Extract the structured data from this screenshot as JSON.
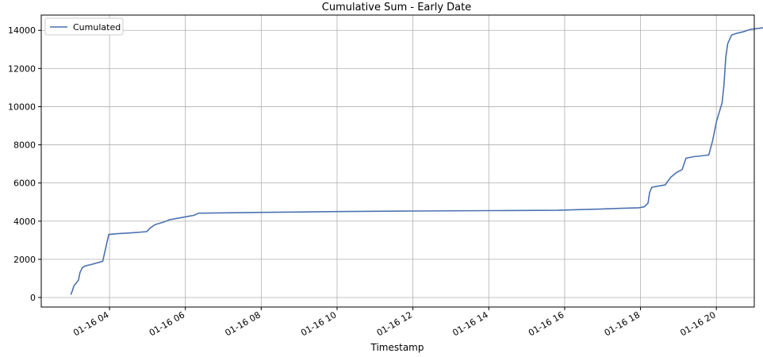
{
  "chart_data": {
    "type": "line",
    "title": "Cumulative Sum - Early Date",
    "xlabel": "Timestamp",
    "ylabel": "",
    "grid": true,
    "legend_position": "top-left",
    "ylim": [
      -500,
      14800
    ],
    "yticks": [
      0,
      2000,
      4000,
      6000,
      8000,
      10000,
      12000,
      14000
    ],
    "xlim": [
      2.2,
      21.0
    ],
    "xticks": [
      {
        "value": 4,
        "label": "01-16 04"
      },
      {
        "value": 6,
        "label": "01-16 06"
      },
      {
        "value": 8,
        "label": "01-16 08"
      },
      {
        "value": 10,
        "label": "01-16 10"
      },
      {
        "value": 12,
        "label": "01-16 12"
      },
      {
        "value": 14,
        "label": "01-16 14"
      },
      {
        "value": 16,
        "label": "01-16 16"
      },
      {
        "value": 18,
        "label": "01-16 18"
      },
      {
        "value": 20,
        "label": "01-16 20"
      }
    ],
    "series": [
      {
        "name": "Cumulated",
        "color": "#4c72b0",
        "points": [
          [
            2.98,
            150
          ],
          [
            3.02,
            350
          ],
          [
            3.06,
            600
          ],
          [
            3.12,
            750
          ],
          [
            3.18,
            900
          ],
          [
            3.22,
            1300
          ],
          [
            3.28,
            1550
          ],
          [
            3.35,
            1650
          ],
          [
            3.5,
            1720
          ],
          [
            3.65,
            1800
          ],
          [
            3.82,
            1900
          ],
          [
            3.98,
            3300
          ],
          [
            4.2,
            3340
          ],
          [
            4.6,
            3390
          ],
          [
            4.98,
            3450
          ],
          [
            5.08,
            3650
          ],
          [
            5.2,
            3820
          ],
          [
            5.4,
            3930
          ],
          [
            5.6,
            4080
          ],
          [
            5.85,
            4170
          ],
          [
            6.12,
            4270
          ],
          [
            6.22,
            4300
          ],
          [
            6.35,
            4420
          ],
          [
            8.0,
            4460
          ],
          [
            10.0,
            4500
          ],
          [
            12.0,
            4530
          ],
          [
            14.0,
            4550
          ],
          [
            15.8,
            4570
          ],
          [
            16.5,
            4610
          ],
          [
            17.0,
            4640
          ],
          [
            17.5,
            4670
          ],
          [
            17.95,
            4700
          ],
          [
            18.1,
            4750
          ],
          [
            18.2,
            4950
          ],
          [
            18.24,
            5500
          ],
          [
            18.3,
            5780
          ],
          [
            18.45,
            5830
          ],
          [
            18.65,
            5900
          ],
          [
            18.8,
            6300
          ],
          [
            18.95,
            6550
          ],
          [
            19.1,
            6700
          ],
          [
            19.2,
            7300
          ],
          [
            19.4,
            7380
          ],
          [
            19.6,
            7420
          ],
          [
            19.8,
            7470
          ],
          [
            19.9,
            8200
          ],
          [
            20.0,
            9200
          ],
          [
            20.15,
            10200
          ],
          [
            20.2,
            11100
          ],
          [
            20.25,
            12600
          ],
          [
            20.3,
            13300
          ],
          [
            20.4,
            13750
          ],
          [
            20.55,
            13850
          ],
          [
            20.7,
            13920
          ],
          [
            20.9,
            14050
          ],
          [
            21.1,
            14100
          ],
          [
            21.3,
            14150
          ]
        ]
      }
    ]
  }
}
